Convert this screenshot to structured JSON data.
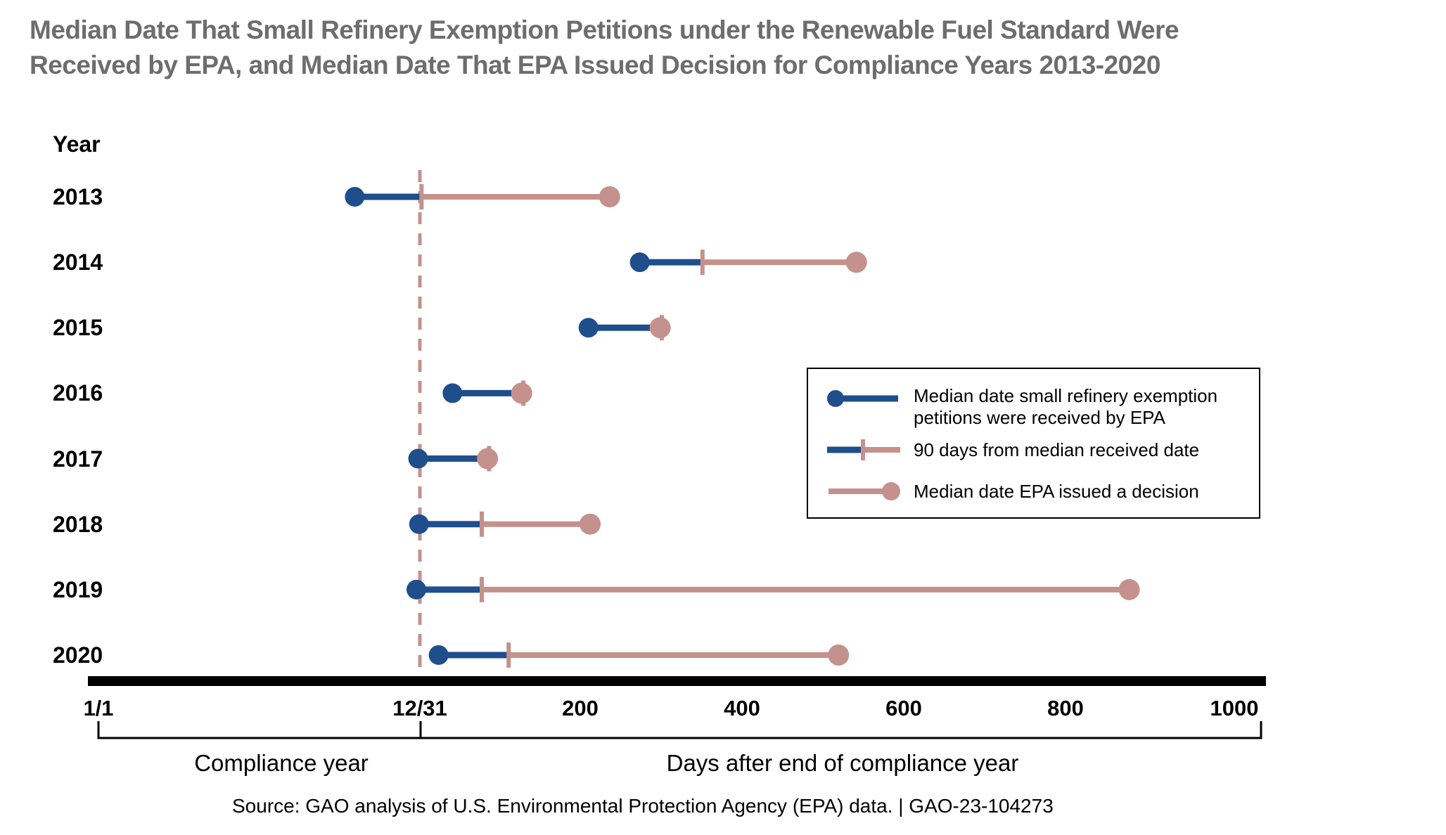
{
  "title": {
    "line1": "Median Date That Small Refinery Exemption Petitions under the Renewable Fuel Standard Were",
    "line2": "Received by EPA, and Median Date That EPA Issued Decision for Compliance Years 2013-2020"
  },
  "chart_data": {
    "type": "dumbbell",
    "title": "Median Date That Small Refinery Exemption Petitions under the Renewable Fuel Standard Were Received by EPA, and Median Date That EPA Issued Decision for Compliance Years 2013-2020",
    "ylabel": "Year",
    "x_axis_note": "day 0 = 12/31 end of compliance year; negative days fall within the compliance year (1/1 = -365); positive values are days after end of compliance year",
    "rows": [
      {
        "year": "2013",
        "received_day": -74,
        "plus90_day": 2,
        "decision_day": 233
      },
      {
        "year": "2014",
        "received_day": 270,
        "plus90_day": 347,
        "decision_day": 536
      },
      {
        "year": "2015",
        "received_day": 207,
        "plus90_day": 297,
        "decision_day": 295
      },
      {
        "year": "2016",
        "received_day": 40,
        "plus90_day": 127,
        "decision_day": 125
      },
      {
        "year": "2017",
        "received_day": -2,
        "plus90_day": 85,
        "decision_day": 83
      },
      {
        "year": "2018",
        "received_day": -1,
        "plus90_day": 76,
        "decision_day": 209
      },
      {
        "year": "2019",
        "received_day": -4,
        "plus90_day": 76,
        "decision_day": 871
      },
      {
        "year": "2020",
        "received_day": 23,
        "plus90_day": 109,
        "decision_day": 514
      }
    ],
    "x_axis": {
      "ticks": [
        {
          "label": "1/1",
          "day": -365
        },
        {
          "label": "12/31",
          "day": 0
        },
        {
          "label": "200",
          "day": 200
        },
        {
          "label": "400",
          "day": 400
        },
        {
          "label": "600",
          "day": 600
        },
        {
          "label": "800",
          "day": 800
        },
        {
          "label": "1000",
          "day": 1000
        }
      ],
      "region_labels": {
        "left": "Compliance year",
        "right": "Days after end of compliance year"
      }
    },
    "legend": [
      {
        "line1": "Median date small refinery exemption",
        "line2": "petitions were received by EPA"
      },
      {
        "line1": "90 days from median received date",
        "line2": ""
      },
      {
        "line1": "Median date EPA issued a decision",
        "line2": ""
      }
    ],
    "legend_position": "middle-right",
    "colors": {
      "received_blue": "#1f4e8c",
      "decision_pink": "#c4918c",
      "title_gray": "#6d6d6d",
      "axis_black": "#000000"
    }
  },
  "footer": {
    "source": "Source: GAO analysis of U.S. Environmental Protection Agency (EPA) data. | GAO-23-104273"
  }
}
